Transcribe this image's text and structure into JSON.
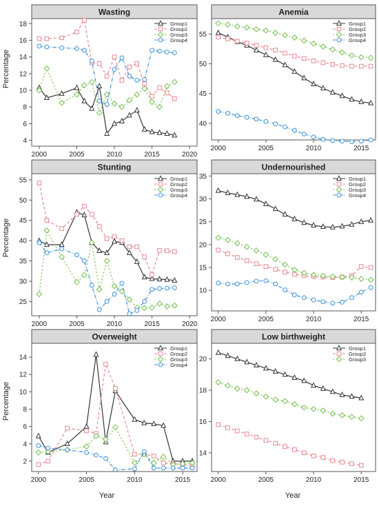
{
  "ylabel": "Percentage",
  "xlabel": "Year",
  "legend_position": "top-right",
  "colors": {
    "Group1": "#333333",
    "Group2": "#e8858f",
    "Group3": "#6fbf4a",
    "Group4": "#3a8fd9",
    "strip": "#d9d9d9"
  },
  "chart_data": [
    {
      "type": "line",
      "title": "Wasting",
      "ylabel": "Percentage",
      "xlabel": "",
      "xlim": [
        1999,
        2021
      ],
      "ylim": [
        3.3,
        18.6
      ],
      "xticks": [
        2000,
        2005,
        2010,
        2015,
        2020
      ],
      "yticks": [
        4,
        6,
        8,
        10,
        12,
        14,
        16,
        18
      ],
      "series": [
        {
          "name": "Group1",
          "x": [
            2000,
            2001,
            2003,
            2005,
            2006,
            2007,
            2008,
            2009,
            2010,
            2011,
            2012,
            2013,
            2014,
            2015,
            2016,
            2017,
            2018
          ],
          "y": [
            10.3,
            9.1,
            9.6,
            10.3,
            8.7,
            7.8,
            10.5,
            4.8,
            6.0,
            6.3,
            7.0,
            7.6,
            5.3,
            5.0,
            4.9,
            4.8,
            4.6
          ]
        },
        {
          "name": "Group2",
          "x": [
            2000,
            2001,
            2003,
            2005,
            2006,
            2007,
            2008,
            2009,
            2010,
            2011,
            2012,
            2013,
            2014,
            2015,
            2016,
            2017,
            2018
          ],
          "y": [
            16.2,
            16.2,
            16.3,
            17.0,
            18.4,
            13.3,
            13.2,
            11.7,
            14.0,
            11.2,
            12.8,
            13.2,
            10.8,
            9.3,
            10.3,
            9.7,
            9.0
          ]
        },
        {
          "name": "Group3",
          "x": [
            2000,
            2001,
            2003,
            2005,
            2006,
            2007,
            2008,
            2009,
            2010,
            2011,
            2012,
            2013,
            2014,
            2015,
            2016,
            2017,
            2018
          ],
          "y": [
            10.0,
            12.6,
            8.5,
            9.5,
            10.6,
            11.0,
            7.3,
            9.5,
            8.4,
            8.0,
            8.8,
            9.5,
            10.2,
            8.6,
            8.0,
            10.5,
            11.0
          ]
        },
        {
          "name": "Group4",
          "x": [
            2000,
            2001,
            2003,
            2005,
            2006,
            2007,
            2008,
            2009,
            2010,
            2011,
            2012,
            2013,
            2014,
            2015,
            2016,
            2017,
            2018
          ],
          "y": [
            15.3,
            15.2,
            15.1,
            15.0,
            14.8,
            13.5,
            8.7,
            8.3,
            12.5,
            13.9,
            11.7,
            11.2,
            11.3,
            14.8,
            14.7,
            14.6,
            14.5
          ]
        }
      ]
    },
    {
      "type": "line",
      "title": "Anemia",
      "ylabel": "",
      "xlabel": "",
      "xlim": [
        1999.3,
        2016.5
      ],
      "ylim": [
        37.2,
        57.6
      ],
      "xticks": [
        2000,
        2005,
        2010,
        2015
      ],
      "yticks": [
        40,
        45,
        50,
        55
      ],
      "series": [
        {
          "name": "Group1",
          "x": [
            2000,
            2001,
            2002,
            2003,
            2004,
            2005,
            2006,
            2007,
            2008,
            2009,
            2010,
            2011,
            2012,
            2013,
            2014,
            2015,
            2016
          ],
          "y": [
            55.2,
            54.5,
            53.7,
            53.1,
            52.3,
            51.5,
            50.7,
            49.8,
            48.7,
            47.6,
            46.6,
            45.9,
            45.2,
            44.6,
            44.0,
            43.6,
            43.4
          ]
        },
        {
          "name": "Group2",
          "x": [
            2000,
            2001,
            2002,
            2003,
            2004,
            2005,
            2006,
            2007,
            2008,
            2009,
            2010,
            2011,
            2012,
            2013,
            2014,
            2015,
            2016
          ],
          "y": [
            54.5,
            54.2,
            53.8,
            53.5,
            53.1,
            52.7,
            52.3,
            51.8,
            51.3,
            50.9,
            50.5,
            50.2,
            49.9,
            49.7,
            49.6,
            49.6,
            49.6
          ]
        },
        {
          "name": "Group3",
          "x": [
            2000,
            2001,
            2002,
            2003,
            2004,
            2005,
            2006,
            2007,
            2008,
            2009,
            2010,
            2011,
            2012,
            2013,
            2014,
            2015,
            2016
          ],
          "y": [
            56.8,
            56.6,
            56.3,
            56.1,
            55.8,
            55.6,
            55.2,
            54.8,
            54.4,
            53.9,
            53.4,
            52.9,
            52.4,
            51.9,
            51.4,
            51.1,
            51.0
          ]
        },
        {
          "name": "Group4",
          "x": [
            2000,
            2001,
            2002,
            2003,
            2004,
            2005,
            2006,
            2007,
            2008,
            2009,
            2010,
            2011,
            2012,
            2013,
            2014,
            2015,
            2016
          ],
          "y": [
            42.0,
            41.7,
            41.3,
            41.0,
            40.7,
            40.3,
            39.9,
            39.4,
            38.8,
            38.2,
            37.7,
            37.3,
            37.1,
            37.0,
            36.9,
            37.0,
            37.2
          ]
        }
      ]
    },
    {
      "type": "line",
      "title": "Stunting",
      "ylabel": "Percentage",
      "xlabel": "",
      "xlim": [
        1999,
        2021
      ],
      "ylim": [
        21.5,
        56.5
      ],
      "xticks": [
        2000,
        2005,
        2010,
        2015,
        2020
      ],
      "yticks": [
        25,
        30,
        35,
        40,
        45,
        50,
        55
      ],
      "series": [
        {
          "name": "Group1",
          "x": [
            2000,
            2001,
            2003,
            2005,
            2006,
            2007,
            2008,
            2009,
            2010,
            2011,
            2012,
            2013,
            2014,
            2015,
            2016,
            2017,
            2018
          ],
          "y": [
            40.0,
            39.0,
            39.0,
            47.0,
            46.3,
            39.5,
            37.5,
            37.0,
            39.8,
            39.5,
            37.0,
            34.8,
            31.0,
            30.6,
            30.5,
            30.4,
            30.2
          ]
        },
        {
          "name": "Group2",
          "x": [
            2000,
            2001,
            2003,
            2005,
            2006,
            2007,
            2008,
            2009,
            2010,
            2011,
            2012,
            2013,
            2014,
            2015,
            2016,
            2017,
            2018
          ],
          "y": [
            54.2,
            45.0,
            43.0,
            46.5,
            48.5,
            46.5,
            43.5,
            40.5,
            41.0,
            40.0,
            38.5,
            38.5,
            36.0,
            31.6,
            37.6,
            37.5,
            37.3
          ]
        },
        {
          "name": "Group3",
          "x": [
            2000,
            2001,
            2003,
            2005,
            2006,
            2007,
            2008,
            2009,
            2010,
            2011,
            2012,
            2013,
            2014,
            2015,
            2016,
            2017,
            2018
          ],
          "y": [
            26.8,
            42.5,
            36.0,
            29.8,
            31.5,
            39.5,
            28.0,
            35.0,
            28.8,
            27.5,
            25.5,
            23.5,
            23.4,
            23.5,
            24.5,
            23.8,
            24.0
          ]
        },
        {
          "name": "Group4",
          "x": [
            2000,
            2001,
            2003,
            2005,
            2006,
            2007,
            2008,
            2009,
            2010,
            2011,
            2012,
            2013,
            2014,
            2015,
            2016,
            2017,
            2018
          ],
          "y": [
            39.5,
            37.0,
            38.0,
            36.5,
            35.0,
            29.0,
            23.0,
            25.0,
            26.8,
            29.5,
            22.0,
            22.8,
            25.0,
            28.0,
            28.2,
            28.3,
            28.4
          ]
        }
      ]
    },
    {
      "type": "line",
      "title": "Undernourished",
      "ylabel": "",
      "xlabel": "",
      "xlim": [
        1999.3,
        2016.5
      ],
      "ylim": [
        5.5,
        35.5
      ],
      "xticks": [
        2000,
        2005,
        2010,
        2015
      ],
      "yticks": [
        10,
        15,
        20,
        25,
        30,
        35
      ],
      "series": [
        {
          "name": "Group1",
          "x": [
            2000,
            2001,
            2002,
            2003,
            2004,
            2005,
            2006,
            2007,
            2008,
            2009,
            2010,
            2011,
            2012,
            2013,
            2014,
            2015,
            2016
          ],
          "y": [
            31.8,
            31.3,
            30.9,
            30.5,
            29.9,
            28.9,
            27.8,
            26.6,
            25.6,
            24.8,
            24.2,
            23.9,
            23.8,
            24.0,
            24.4,
            25.0,
            25.3
          ]
        },
        {
          "name": "Group2",
          "x": [
            2000,
            2001,
            2002,
            2003,
            2004,
            2005,
            2006,
            2007,
            2008,
            2009,
            2010,
            2011,
            2012,
            2013,
            2014,
            2015,
            2016
          ],
          "y": [
            18.8,
            18.0,
            17.2,
            16.5,
            15.8,
            15.2,
            14.6,
            14.0,
            13.5,
            13.2,
            13.0,
            12.9,
            12.8,
            12.9,
            13.2,
            15.2,
            15.0
          ]
        },
        {
          "name": "Group3",
          "x": [
            2000,
            2001,
            2002,
            2003,
            2004,
            2005,
            2006,
            2007,
            2008,
            2009,
            2010,
            2011,
            2012,
            2013,
            2014,
            2015,
            2016
          ],
          "y": [
            21.5,
            21.0,
            20.3,
            19.5,
            18.7,
            17.8,
            16.8,
            15.6,
            14.5,
            13.8,
            13.4,
            13.2,
            13.0,
            12.9,
            12.8,
            12.5,
            12.3
          ]
        },
        {
          "name": "Group4",
          "x": [
            2000,
            2001,
            2002,
            2003,
            2004,
            2005,
            2006,
            2007,
            2008,
            2009,
            2010,
            2011,
            2012,
            2013,
            2014,
            2015,
            2016
          ],
          "y": [
            11.6,
            11.4,
            11.4,
            11.7,
            12.0,
            12.1,
            11.4,
            10.1,
            9.0,
            8.4,
            7.9,
            7.5,
            7.2,
            7.4,
            8.4,
            9.6,
            10.6
          ]
        }
      ]
    },
    {
      "type": "line",
      "title": "Overweight",
      "ylabel": "Percentage",
      "xlabel": "Year",
      "xlim": [
        1999.3,
        2016.5
      ],
      "ylim": [
        0.8,
        15.6
      ],
      "xticks": [
        2000,
        2005,
        2010,
        2015
      ],
      "yticks": [
        2,
        4,
        6,
        8,
        10,
        12,
        14
      ],
      "series": [
        {
          "name": "Group1",
          "x": [
            2000,
            2001,
            2003,
            2005,
            2006,
            2007,
            2008,
            2010,
            2011,
            2012,
            2013,
            2014,
            2015,
            2016
          ],
          "y": [
            4.9,
            3.0,
            4.0,
            6.0,
            14.3,
            4.2,
            10.1,
            6.8,
            6.4,
            6.3,
            6.1,
            2.0,
            2.0,
            2.0
          ]
        },
        {
          "name": "Group2",
          "x": [
            2000,
            2001,
            2003,
            2005,
            2006,
            2007,
            2008,
            2010,
            2011,
            2012,
            2013,
            2014,
            2015,
            2016
          ],
          "y": [
            1.6,
            2.0,
            5.8,
            5.5,
            5.2,
            13.2,
            10.4,
            2.8,
            2.8,
            2.6,
            1.8,
            1.7,
            1.6,
            1.5
          ]
        },
        {
          "name": "Group3",
          "x": [
            2000,
            2001,
            2003,
            2005,
            2006,
            2007,
            2008,
            2010,
            2011,
            2012,
            2013,
            2014,
            2015,
            2016
          ],
          "y": [
            3.0,
            3.1,
            3.3,
            3.7,
            4.9,
            4.5,
            5.9,
            1.8,
            2.8,
            1.8,
            2.5,
            1.6,
            1.7,
            1.8
          ]
        },
        {
          "name": "Group4",
          "x": [
            2000,
            2001,
            2003,
            2005,
            2006,
            2007,
            2008,
            2010,
            2011,
            2012,
            2013,
            2014,
            2015,
            2016
          ],
          "y": [
            3.8,
            3.5,
            3.3,
            3.0,
            2.7,
            2.3,
            1.0,
            1.1,
            3.1,
            1.2,
            1.2,
            1.2,
            1.2,
            1.2
          ]
        }
      ]
    },
    {
      "type": "line",
      "title": "Low birthweight",
      "ylabel": "",
      "xlabel": "Year",
      "xlim": [
        1999.3,
        2016.5
      ],
      "ylim": [
        12.8,
        21.0
      ],
      "xticks": [
        2000,
        2005,
        2010,
        2015
      ],
      "yticks": [
        14,
        16,
        18,
        20
      ],
      "series": [
        {
          "name": "Group1",
          "x": [
            2000,
            2001,
            2002,
            2003,
            2004,
            2005,
            2006,
            2007,
            2008,
            2009,
            2010,
            2011,
            2012,
            2013,
            2014,
            2015
          ],
          "y": [
            20.4,
            20.2,
            20.0,
            19.8,
            19.6,
            19.4,
            19.2,
            19.0,
            18.8,
            18.6,
            18.3,
            18.1,
            17.9,
            17.7,
            17.6,
            17.5
          ]
        },
        {
          "name": "Group2",
          "x": [
            2000,
            2001,
            2002,
            2003,
            2004,
            2005,
            2006,
            2007,
            2008,
            2009,
            2010,
            2011,
            2012,
            2013,
            2014,
            2015
          ],
          "y": [
            15.8,
            15.6,
            15.4,
            15.2,
            15.0,
            14.8,
            14.6,
            14.4,
            14.2,
            14.0,
            13.8,
            13.7,
            13.5,
            13.4,
            13.3,
            13.2
          ]
        },
        {
          "name": "Group3",
          "x": [
            2000,
            2001,
            2002,
            2003,
            2004,
            2005,
            2006,
            2007,
            2008,
            2009,
            2010,
            2011,
            2012,
            2013,
            2014,
            2015
          ],
          "y": [
            18.5,
            18.3,
            18.1,
            18.0,
            17.8,
            17.6,
            17.4,
            17.3,
            17.1,
            16.9,
            16.8,
            16.7,
            16.5,
            16.4,
            16.3,
            16.2
          ]
        }
      ]
    }
  ]
}
